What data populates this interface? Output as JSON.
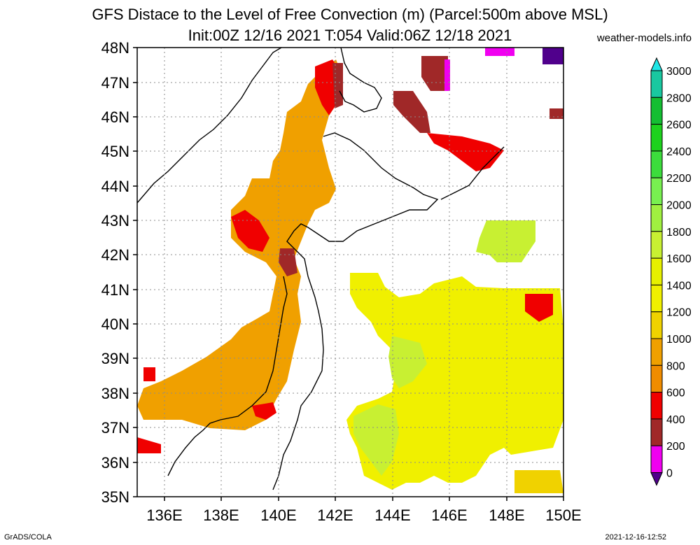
{
  "header": {
    "title_line1": "GFS Distace to the Level of Free Convection (m) (Parcel:500m above MSL)",
    "title_line2": "Init:00Z 12/16 2021 T:054 Valid:06Z 12/18 2021",
    "credit": "weather-models.info"
  },
  "footer": {
    "left": "GrADS/COLA",
    "right": "2021-12-16-12:52"
  },
  "map": {
    "lat_labels": [
      "48N",
      "47N",
      "46N",
      "45N",
      "44N",
      "43N",
      "42N",
      "41N",
      "40N",
      "39N",
      "38N",
      "37N",
      "36N",
      "35N"
    ],
    "lon_labels": [
      "136E",
      "138E",
      "140E",
      "142E",
      "144E",
      "146E",
      "148E",
      "150E"
    ]
  },
  "colorbar": {
    "levels": [
      "3000",
      "2800",
      "2600",
      "2400",
      "2200",
      "2000",
      "1800",
      "1600",
      "1400",
      "1200",
      "1000",
      "800",
      "600",
      "400",
      "200",
      "0"
    ],
    "colors": [
      "#1ee6e6",
      "#19c8a0",
      "#14be32",
      "#1ed21e",
      "#3cdc3c",
      "#78f050",
      "#a0f040",
      "#c8f032",
      "#e6f000",
      "#f0f000",
      "#f0d200",
      "#f0a000",
      "#f08c00",
      "#f00000",
      "#a02828",
      "#f000f0",
      "#50008c"
    ]
  }
}
